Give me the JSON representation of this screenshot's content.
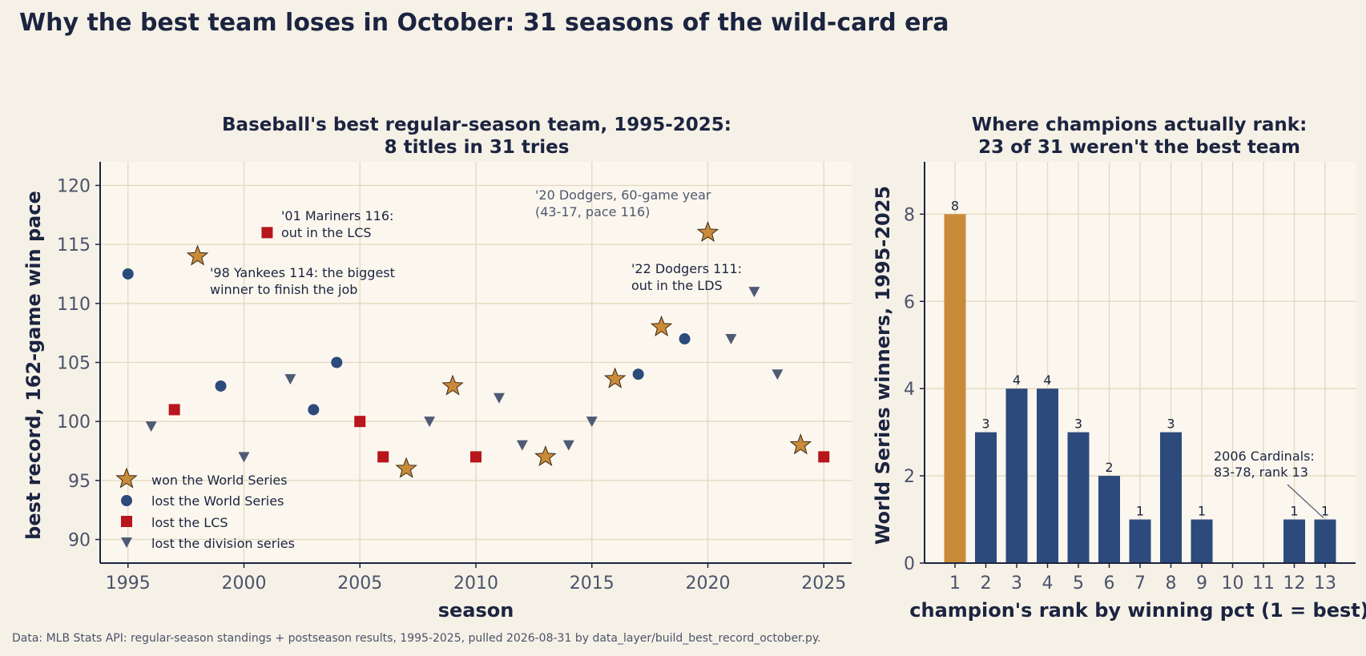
{
  "suptitle": "Why the best team loses in October: 31 seasons of the wild-card era",
  "source": "Data: MLB Stats API: regular-season standings + postseason results, 1995-2025, pulled 2026-08-31 by data_layer/build_best_record_october.py.",
  "colors": {
    "background": "#f6f1e7",
    "plot_bg": "#fbf7ee",
    "grid": "#e1d8bf",
    "ink": "#1b2440",
    "won": "#c98a3a",
    "lost_ws": "#2c4a7c",
    "lost_lcs": "#b8151c",
    "lost_ds": "#4f5b75",
    "bar_best": "#c98a3a",
    "bar_other": "#2c4a7c"
  },
  "chart_data": [
    {
      "type": "scatter",
      "title_line1": "Baseball's best regular-season team, 1995-2025:",
      "title_line2": "8 titles in 31 tries",
      "xlabel": "season",
      "ylabel": "best record, 162-game win pace",
      "xlim": [
        1993.8,
        2026.2
      ],
      "ylim": [
        88,
        122
      ],
      "xticks": [
        1995,
        2000,
        2005,
        2010,
        2015,
        2020,
        2025
      ],
      "yticks": [
        90,
        95,
        100,
        105,
        110,
        115,
        120
      ],
      "grid": true,
      "legend_position": "lower-left",
      "series": [
        {
          "key": "won",
          "name": "won the World Series",
          "marker": "star",
          "points": [
            [
              1998,
              114
            ],
            [
              2007,
              96
            ],
            [
              2009,
              103
            ],
            [
              2013,
              97
            ],
            [
              2016,
              103.6
            ],
            [
              2018,
              108
            ],
            [
              2020,
              116
            ],
            [
              2024,
              98
            ]
          ]
        },
        {
          "key": "lost_ws",
          "name": "lost the World Series",
          "marker": "circle",
          "points": [
            [
              1995,
              112.5
            ],
            [
              1999,
              103
            ],
            [
              2003,
              101
            ],
            [
              2004,
              105
            ],
            [
              2017,
              104
            ],
            [
              2019,
              107
            ]
          ]
        },
        {
          "key": "lost_lcs",
          "name": "lost the LCS",
          "marker": "square",
          "points": [
            [
              1997,
              101
            ],
            [
              2001,
              116
            ],
            [
              2005,
              100
            ],
            [
              2006,
              97
            ],
            [
              2010,
              97
            ],
            [
              2025,
              97
            ]
          ]
        },
        {
          "key": "lost_ds",
          "name": "lost the division series",
          "marker": "triangle",
          "points": [
            [
              1996,
              99.6
            ],
            [
              2000,
              97
            ],
            [
              2002,
              103.6
            ],
            [
              2008,
              100
            ],
            [
              2011,
              102
            ],
            [
              2012,
              98
            ],
            [
              2014,
              98
            ],
            [
              2015,
              100
            ],
            [
              2021,
              107
            ],
            [
              2022,
              111
            ],
            [
              2023,
              104
            ]
          ]
        }
      ],
      "annotations": [
        {
          "text1": "'01 Mariners 116:",
          "text2": "out in the LCS",
          "muted": false
        },
        {
          "text1": "'98 Yankees 114: the biggest",
          "text2": "winner to finish the job",
          "muted": false
        },
        {
          "text1": "'20 Dodgers, 60-game year",
          "text2": "(43-17, pace 116)",
          "muted": true
        },
        {
          "text1": "'22 Dodgers 111:",
          "text2": "out in the LDS",
          "muted": false
        }
      ]
    },
    {
      "type": "bar",
      "title_line1": "Where champions actually rank:",
      "title_line2": "23 of 31 weren't the best team",
      "xlabel": "champion's rank by winning pct (1 = best)",
      "ylabel": "World Series winners, 1995-2025",
      "categories": [
        "1",
        "2",
        "3",
        "4",
        "5",
        "6",
        "7",
        "8",
        "9",
        "10",
        "11",
        "12",
        "13"
      ],
      "values": [
        8,
        3,
        4,
        4,
        3,
        2,
        1,
        3,
        1,
        0,
        0,
        1,
        1
      ],
      "ylim": [
        0,
        9.2
      ],
      "yticks": [
        0,
        2,
        4,
        6,
        8
      ],
      "grid": true,
      "highlight_category": "1",
      "annotation": {
        "text1": "2006 Cardinals:",
        "text2": "83-78, rank 13"
      }
    }
  ]
}
